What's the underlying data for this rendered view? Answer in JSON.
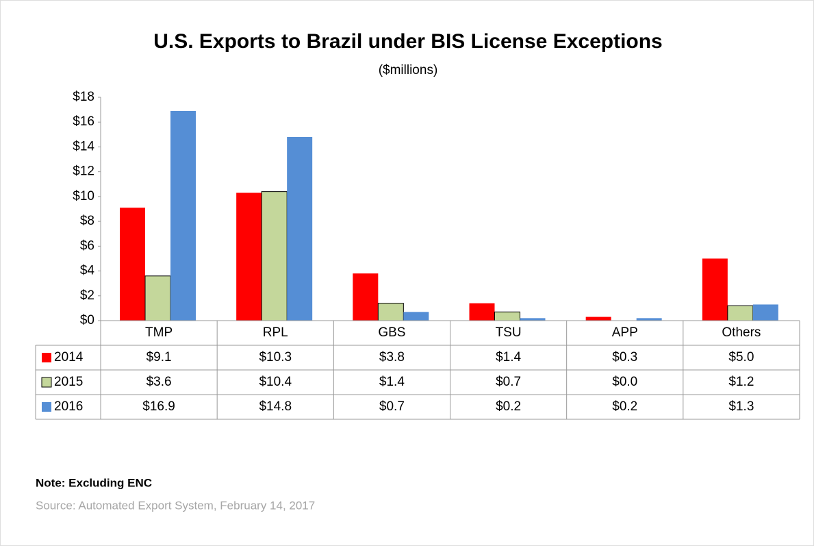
{
  "chart_data": {
    "type": "bar",
    "title": "U.S. Exports to Brazil under BIS License Exceptions",
    "subtitle": "($millions)",
    "categories": [
      "TMP",
      "RPL",
      "GBS",
      "TSU",
      "APP",
      "Others"
    ],
    "series": [
      {
        "name": "2014",
        "color": "#ff0000",
        "values": [
          9.1,
          10.3,
          3.8,
          1.4,
          0.3,
          5.0
        ],
        "value_labels": [
          "$9.1",
          "$10.3",
          "$3.8",
          "$1.4",
          "$0.3",
          "$5.0"
        ]
      },
      {
        "name": "2015",
        "color": "#c4d79b",
        "values": [
          3.6,
          10.4,
          1.4,
          0.7,
          0.0,
          1.2
        ],
        "value_labels": [
          "$3.6",
          "$10.4",
          "$1.4",
          "$0.7",
          "$0.0",
          "$1.2"
        ]
      },
      {
        "name": "2016",
        "color": "#558ed5",
        "values": [
          16.9,
          14.8,
          0.7,
          0.2,
          0.2,
          1.3
        ],
        "value_labels": [
          "$16.9",
          "$14.8",
          "$0.7",
          "$0.2",
          "$0.2",
          "$1.3"
        ]
      }
    ],
    "ylim": [
      0,
      18
    ],
    "yticks": [
      {
        "value": 0,
        "label": "$0"
      },
      {
        "value": 2,
        "label": "$2"
      },
      {
        "value": 4,
        "label": "$4"
      },
      {
        "value": 6,
        "label": "$6"
      },
      {
        "value": 8,
        "label": "$8"
      },
      {
        "value": 10,
        "label": "$10"
      },
      {
        "value": 12,
        "label": "$12"
      },
      {
        "value": 14,
        "label": "$14"
      },
      {
        "value": 16,
        "label": "$16"
      },
      {
        "value": 18,
        "label": "$18"
      }
    ],
    "grid": false,
    "note": "Note: Excluding ENC",
    "source": "Source: Automated Export System, February 14, 2017"
  }
}
